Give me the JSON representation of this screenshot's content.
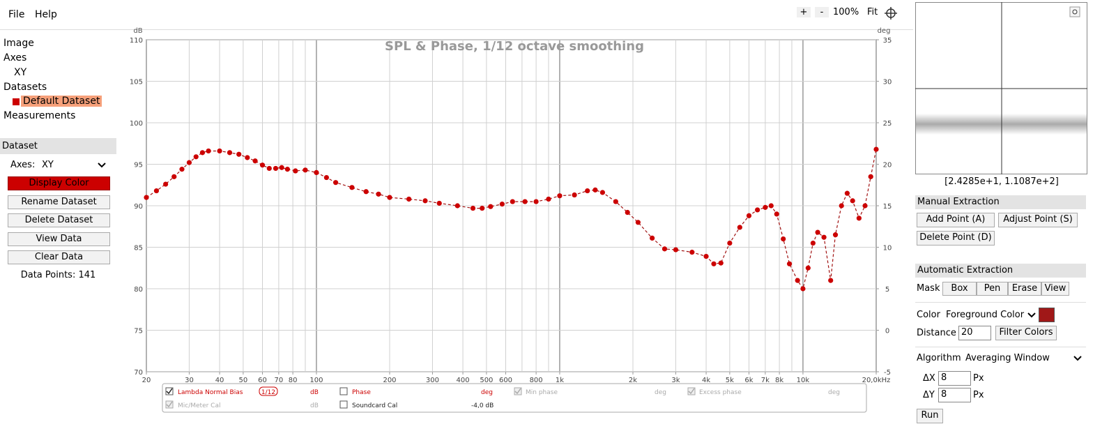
{
  "menu": [
    "File",
    "Help"
  ],
  "zoom": [
    "+",
    "-",
    "100%",
    "Fit"
  ],
  "tree": {
    "image": "Image",
    "axes": "Axes",
    "axis_item": "XY",
    "datasets": "Datasets",
    "dataset_item": "Default Dataset",
    "measurements": "Measurements"
  },
  "dataset_panel": {
    "title": "Dataset",
    "axes_label": "Axes:",
    "axes_value": "XY",
    "buttons": [
      "Display Color",
      "Rename Dataset",
      "Delete Dataset",
      "View Data",
      "Clear Data"
    ],
    "data_points": "Data Points: 141"
  },
  "chart_data": {
    "type": "line",
    "title": "SPL & Phase, 1/12 octave smoothing",
    "y_unit": "dB",
    "y2_unit": "deg",
    "color": "#cc0000",
    "xscale": "log",
    "grid": true,
    "x": [
      20,
      22,
      24,
      26,
      28,
      30,
      32,
      34,
      36,
      40,
      44,
      48,
      52,
      56,
      60,
      64,
      68,
      72,
      76,
      82,
      90,
      100,
      110,
      120,
      140,
      160,
      180,
      200,
      240,
      280,
      320,
      380,
      440,
      480,
      520,
      580,
      640,
      720,
      800,
      900,
      1000,
      1150,
      1300,
      1400,
      1500,
      1700,
      1900,
      2100,
      2400,
      2700,
      3000,
      3500,
      4000,
      4300,
      4600,
      5000,
      5500,
      6000,
      6500,
      7000,
      7400,
      7800,
      8300,
      8800,
      9500,
      10000,
      10500,
      11000,
      11500,
      12200,
      13000,
      13600,
      14400,
      15200,
      16000,
      17000,
      18000,
      19000,
      20000
    ],
    "values": [
      91,
      91.8,
      92.6,
      93.5,
      94.4,
      95.2,
      95.9,
      96.4,
      96.6,
      96.6,
      96.4,
      96.2,
      95.8,
      95.4,
      94.9,
      94.5,
      94.5,
      94.6,
      94.4,
      94.2,
      94.3,
      94.0,
      93.4,
      92.8,
      92.2,
      91.7,
      91.4,
      91.0,
      90.8,
      90.6,
      90.3,
      90.0,
      89.7,
      89.7,
      89.9,
      90.2,
      90.5,
      90.5,
      90.5,
      90.8,
      91.2,
      91.3,
      91.8,
      91.9,
      91.6,
      90.5,
      89.2,
      88.0,
      86.1,
      84.8,
      84.7,
      84.4,
      83.9,
      83.0,
      83.1,
      85.5,
      87.4,
      88.8,
      89.5,
      89.8,
      90.0,
      89.0,
      86.0,
      83.0,
      81.0,
      80.0,
      82.5,
      85.5,
      86.8,
      86.2,
      81.0,
      86.5,
      90.0,
      91.5,
      90.6,
      88.5,
      90.0,
      93.5,
      96.8
    ],
    "xlim": [
      20,
      20000
    ],
    "xticks": [
      20,
      30,
      40,
      50,
      60,
      70,
      80,
      100,
      200,
      300,
      400,
      500,
      600,
      800,
      {
        "value": 1000,
        "label": "1k"
      },
      {
        "value": 2000,
        "label": "2k"
      },
      {
        "value": 3000,
        "label": "3k"
      },
      {
        "value": 4000,
        "label": "4k"
      },
      {
        "value": 5000,
        "label": "5k"
      },
      {
        "value": 6000,
        "label": "6k"
      },
      {
        "value": 7000,
        "label": "7k"
      },
      {
        "value": 8000,
        "label": "8k"
      },
      {
        "value": 10000,
        "label": "10k"
      },
      {
        "value": 20000,
        "label": "20,0kHz"
      }
    ],
    "ylim": [
      70,
      110
    ],
    "yticks": [
      70,
      75,
      80,
      85,
      90,
      95,
      100,
      105,
      110
    ],
    "y2lim": [
      -5,
      35
    ],
    "y2ticks": [
      -5,
      0,
      5,
      10,
      15,
      20,
      25,
      30,
      35
    ]
  },
  "legend_controls": {
    "row1": [
      "Lambda Normal Bias",
      "1/12",
      "dB",
      "Phase",
      "deg",
      "Min phase",
      "deg",
      "Excess phase",
      "deg"
    ],
    "row2": [
      "Mic/Meter Cal",
      "dB",
      "Soundcard Cal",
      "-4,0 dB"
    ]
  },
  "magnifier": {
    "coords": "[2.4285e+1, 1.1087e+2]"
  },
  "manual": {
    "title": "Manual Extraction",
    "buttons": [
      "Add Point (A)",
      "Adjust Point (S)",
      "Delete Point (D)"
    ]
  },
  "automatic": {
    "title": "Automatic Extraction",
    "mask_label": "Mask",
    "mask_buttons": [
      "Box",
      "Pen",
      "Erase",
      "View"
    ],
    "color_label": "Color",
    "color_value": "Foreground Color",
    "distance_label": "Distance",
    "distance_value": "20",
    "filter_button": "Filter Colors",
    "algorithm_label": "Algorithm",
    "algorithm_value": "Averaging Window",
    "dx_label": "ΔX",
    "dx_value": "8",
    "dy_label": "ΔY",
    "dy_value": "8",
    "unit": "Px",
    "run": "Run"
  }
}
